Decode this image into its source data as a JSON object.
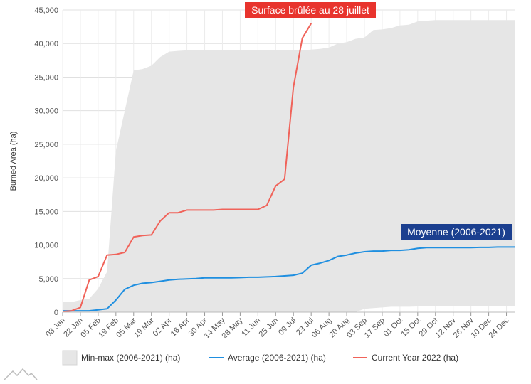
{
  "chart_data": {
    "type": "area",
    "ylabel": "Burned Area (ha)",
    "ylim": [
      0,
      45000
    ],
    "y_ticks": [
      "0",
      "5,000",
      "10,000",
      "15,000",
      "20,000",
      "25,000",
      "30,000",
      "35,000",
      "40,000",
      "45,000"
    ],
    "x_tick_labels": [
      "08 Jan",
      "22 Jan",
      "05 Feb",
      "19 Feb",
      "05 Mar",
      "19 Mar",
      "02 Apr",
      "16 Apr",
      "30 Apr",
      "14 May",
      "28 May",
      "11 Jun",
      "25 Jun",
      "09 Jul",
      "23 Jul",
      "06 Aug",
      "20 Aug",
      "03 Sep",
      "17 Sep",
      "01 Oct",
      "15 Oct",
      "29 Oct",
      "12 Nov",
      "26 Nov",
      "10 Dec",
      "24 Dec"
    ],
    "week_index_start": 0,
    "series": [
      {
        "name": "Min-max (2006-2021) (ha)",
        "kind": "range",
        "color": "#e6e6e6",
        "max": [
          1500,
          1500,
          1800,
          2000,
          3500,
          6000,
          24000,
          30000,
          36000,
          36200,
          36700,
          38000,
          38800,
          38900,
          39000,
          39000,
          39000,
          39000,
          39000,
          39000,
          39000,
          39000,
          39000,
          39000,
          39000,
          39000,
          39000,
          39000,
          39100,
          39200,
          39400,
          40000,
          40200,
          40700,
          40900,
          42000,
          42100,
          42300,
          42700,
          42800,
          43300,
          43400,
          43500,
          43500,
          43500,
          43500,
          43500,
          43500,
          43500,
          43500,
          43500,
          43500
        ],
        "min": [
          0,
          0,
          0,
          0,
          0,
          0,
          0,
          0,
          0,
          0,
          0,
          0,
          0,
          0,
          0,
          0,
          0,
          0,
          0,
          0,
          0,
          0,
          0,
          0,
          0,
          0,
          0,
          0,
          0,
          0,
          0,
          0,
          0,
          0,
          500,
          600,
          700,
          800,
          800,
          800,
          850,
          850,
          850,
          850,
          850,
          850,
          850,
          850,
          850,
          850,
          850,
          850
        ]
      },
      {
        "name": "Average (2006-2021) (ha)",
        "kind": "line",
        "color": "#1f8fe0",
        "values": [
          200,
          200,
          200,
          200,
          350,
          500,
          1800,
          3400,
          4000,
          4300,
          4400,
          4600,
          4800,
          4900,
          4950,
          5000,
          5100,
          5100,
          5100,
          5100,
          5150,
          5200,
          5200,
          5250,
          5300,
          5400,
          5500,
          5800,
          7000,
          7300,
          7700,
          8300,
          8500,
          8800,
          9000,
          9100,
          9100,
          9200,
          9200,
          9300,
          9500,
          9600,
          9600,
          9600,
          9600,
          9600,
          9600,
          9650,
          9650,
          9700,
          9700,
          9700
        ]
      },
      {
        "name": "Current Year 2022 (ha)",
        "kind": "line",
        "color": "#f0635a",
        "values": [
          100,
          200,
          700,
          4800,
          5300,
          8500,
          8600,
          8900,
          11200,
          11400,
          11500,
          13600,
          14800,
          14800,
          15200,
          15200,
          15200,
          15200,
          15300,
          15300,
          15300,
          15300,
          15300,
          15900,
          18800,
          19800,
          33500,
          40800,
          43000
        ]
      }
    ],
    "annotations": [
      {
        "text": "Surface brûlée au 28 juillet",
        "color": "#e8342d"
      },
      {
        "text": "Moyenne (2006-2021)",
        "color": "#1b3f8f"
      }
    ],
    "legend": {
      "position": "bottom-left"
    },
    "grid": true
  }
}
